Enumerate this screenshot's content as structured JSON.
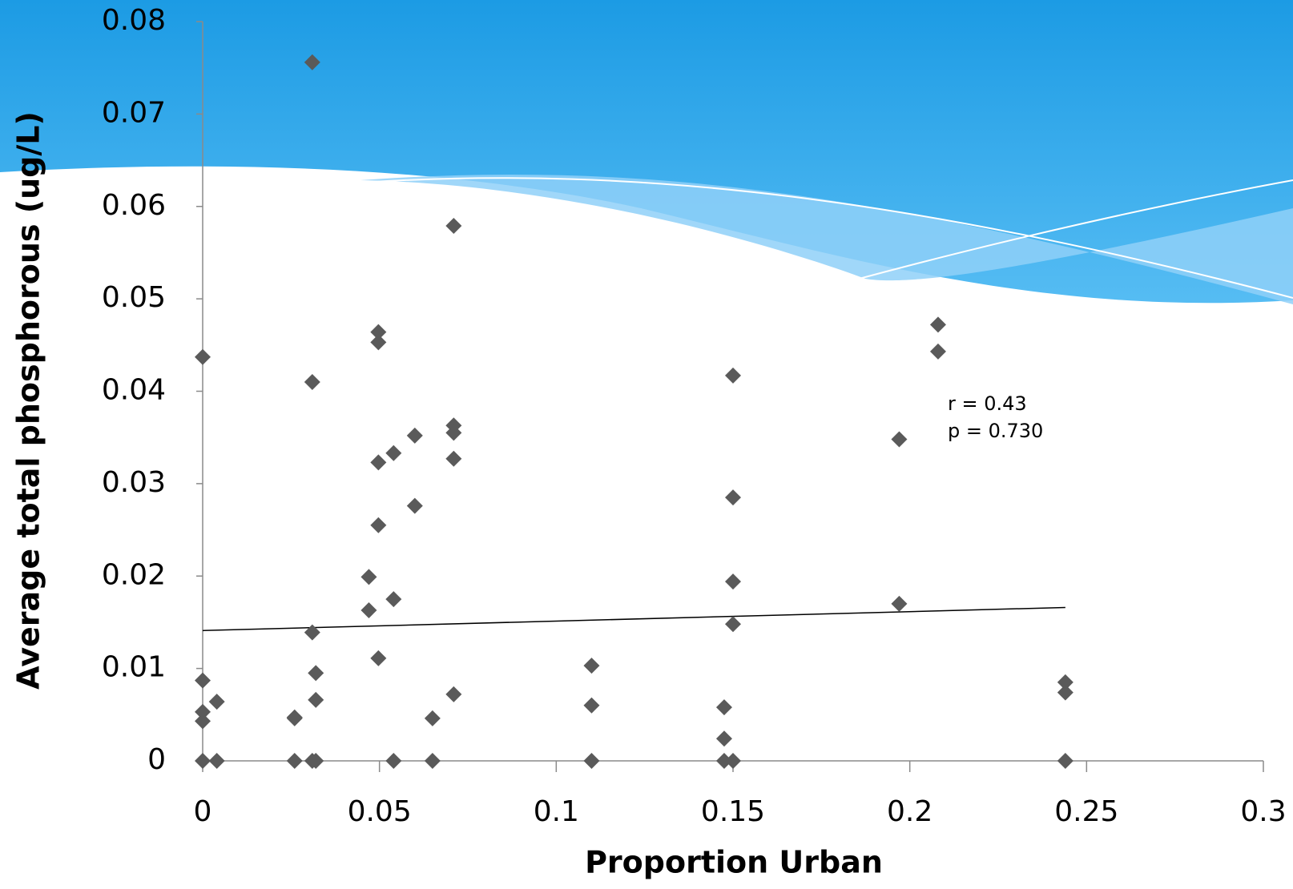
{
  "chart_data": {
    "type": "scatter",
    "xlabel": "Proportion Urban",
    "ylabel": "Average total phosphorous (ug/L)",
    "annotations": [
      "r = 0.43",
      "p = 0.730"
    ],
    "color": "#5a5a5a",
    "x": [
      0,
      0,
      0,
      0,
      0,
      0.004,
      0.004,
      0.026,
      0.026,
      0.026,
      0.031,
      0.031,
      0.031,
      0.031,
      0.032,
      0.032,
      0.032,
      0.047,
      0.047,
      0.0497,
      0.0497,
      0.0497,
      0.0497,
      0.0497,
      0.054,
      0.054,
      0.054,
      0.06,
      0.06,
      0.065,
      0.065,
      0.071,
      0.071,
      0.071,
      0.071,
      0.071,
      0.11,
      0.11,
      0.11,
      0.1475,
      0.1475,
      0.1475,
      0.15,
      0.15,
      0.15,
      0.15,
      0.15,
      0.197,
      0.197,
      0.208,
      0.208,
      0.244,
      0.244,
      0.244
    ],
    "y": [
      0.0437,
      0.0087,
      0.0053,
      0.0043,
      0,
      0.0064,
      0,
      0.0047,
      0.0046,
      0,
      0.0756,
      0.041,
      0.0139,
      0,
      0.0095,
      0.0066,
      0,
      0.0199,
      0.0163,
      0.0464,
      0.0453,
      0.0323,
      0.0255,
      0.0111,
      0.0333,
      0.0175,
      0,
      0.0352,
      0.0276,
      0.0046,
      0,
      0.0579,
      0.0363,
      0.0355,
      0.0327,
      0.0072,
      0.0103,
      0.006,
      0,
      0.0058,
      0.0024,
      0,
      0.0417,
      0.0285,
      0.0194,
      0.0148,
      0,
      0.0348,
      0.017,
      0.0472,
      0.0443,
      0.0085,
      0.0074,
      0
    ],
    "trendline": {
      "x": [
        0,
        0.244
      ],
      "y": [
        0.0141,
        0.0166
      ],
      "color": "#000000"
    },
    "xlim": [
      0,
      0.3
    ],
    "xticks": [
      0,
      0.05,
      0.1,
      0.15,
      0.2,
      0.25,
      0.3
    ],
    "ylim": [
      0,
      0.08
    ],
    "yticks": [
      0,
      0.01,
      0.02,
      0.03,
      0.04,
      0.05,
      0.06,
      0.07,
      0.08
    ]
  }
}
